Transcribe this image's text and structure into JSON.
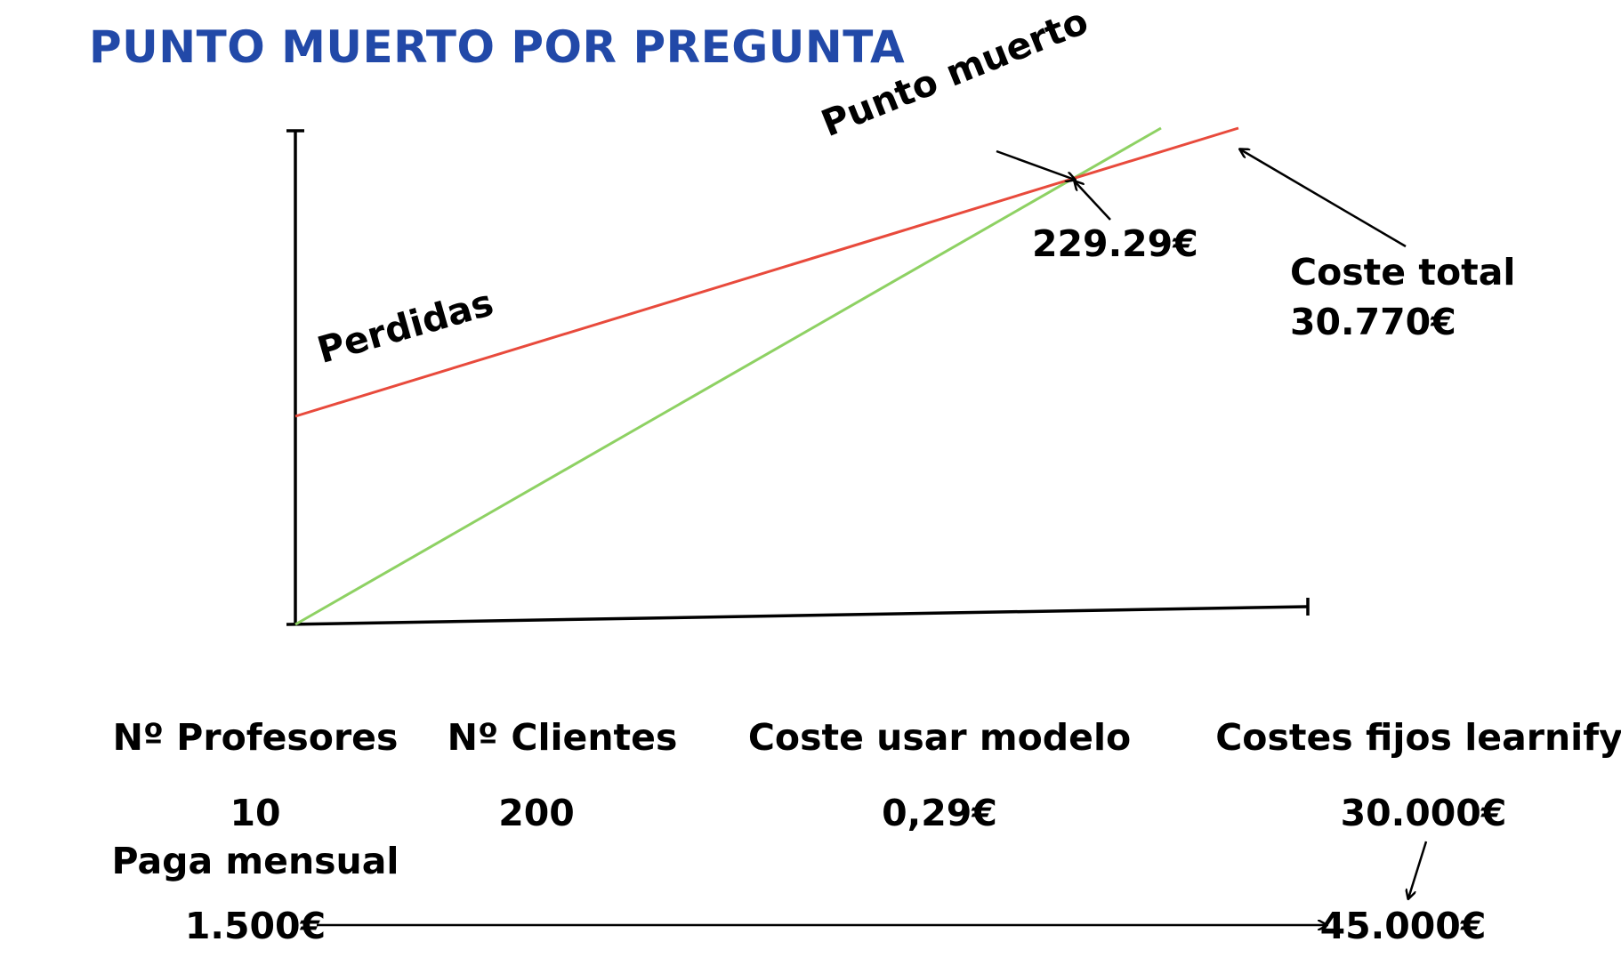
{
  "title": "PUNTO MUERTO POR PREGUNTA",
  "colors": {
    "title": "#2249a8",
    "cost_line": "#e84a3c",
    "revenue_line": "#8ed163",
    "axes": "#000000"
  },
  "chart": {
    "annotations": {
      "break_even_label": "Punto muerto",
      "break_even_value": "229.29€",
      "losses_label": "Perdidas",
      "total_cost_label": "Coste total",
      "total_cost_value": "30.770€"
    }
  },
  "table": {
    "headers": {
      "profesores": "Nº Profesores",
      "clientes": "Nº Clientes",
      "coste_modelo": "Coste usar modelo",
      "costes_fijos": "Costes fijos learnify"
    },
    "values": {
      "profesores": "10",
      "clientes": "200",
      "coste_modelo": "0,29€",
      "costes_fijos": "30.000€"
    },
    "paga_label": "Paga mensual",
    "paga_value": "1.500€",
    "result_value": "45.000€"
  }
}
